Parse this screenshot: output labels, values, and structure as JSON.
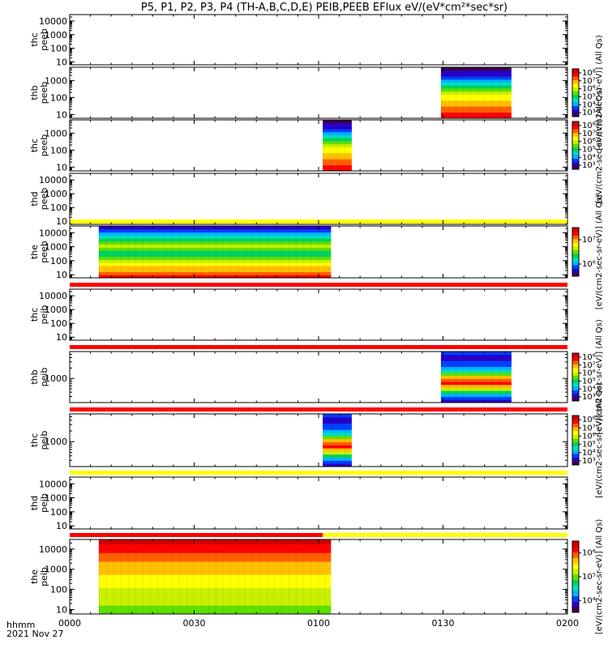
{
  "figure": {
    "title": "P5, P1, P2, P3, P4 (TH-A,B,C,D,E) PEIB,PEEB EFlux eV/(eV*cm²*sec*sr)",
    "time_label": "hhmm",
    "date_label": "2021 Nov 27"
  },
  "colors": {
    "flag_yellow": "#ffff00",
    "flag_red": "#ff0000",
    "colormap": [
      "#3c0050",
      "#2800c8",
      "#0040ff",
      "#00b4ff",
      "#00e0c0",
      "#00d060",
      "#60e000",
      "#c8f000",
      "#ffff00",
      "#ffc000",
      "#ff6000",
      "#ff0000",
      "#d00000"
    ]
  },
  "chart_data": {
    "type": "heatmap",
    "x_axis": {
      "range_hhmm": [
        "0000",
        "0200"
      ],
      "range_minutes": [
        0,
        120
      ],
      "ticks": [
        {
          "label": "0000",
          "minute": 0
        },
        {
          "label": "0030",
          "minute": 30
        },
        {
          "label": "0100",
          "minute": 60
        },
        {
          "label": "0130",
          "minute": 90
        },
        {
          "label": "0200",
          "minute": 120
        }
      ]
    },
    "panels": [
      {
        "id": "thc-peeb",
        "label": [
          "thc",
          "peeb"
        ],
        "ylog": true,
        "ytick_labels": [
          "10",
          "100",
          "1000",
          "10000"
        ],
        "ytick_values": [
          10,
          100,
          1000,
          10000
        ],
        "ylim": [
          6,
          30000
        ],
        "colorbar": false,
        "flag": null,
        "blocks": []
      },
      {
        "id": "thb-peeb",
        "label": [
          "thb",
          "peeb"
        ],
        "ylog": true,
        "ytick_labels": [
          "10",
          "100",
          "1000"
        ],
        "ytick_values": [
          10,
          100,
          1000
        ],
        "ylim": [
          6,
          6000
        ],
        "colorbar": true,
        "colorbar_ticks": [
          "10³",
          "10⁴",
          "10⁵",
          "10⁶",
          "10⁷",
          "10⁸"
        ],
        "colorbar_label": "[eV/(cm2-sec-sr-eV)] (All Qs)",
        "flag": null,
        "blocks": [
          {
            "t0": 89.5,
            "t1": 106.5,
            "profile": [
              11,
              11,
              10,
              10,
              9,
              9,
              8,
              8,
              7,
              6,
              5,
              4,
              3,
              2,
              1,
              1,
              0
            ]
          }
        ]
      },
      {
        "id": "thc-peeb2",
        "label": [
          "thc",
          "peeb"
        ],
        "ylog": true,
        "ytick_labels": [
          "10",
          "100",
          "1000"
        ],
        "ytick_values": [
          10,
          100,
          1000
        ],
        "ylim": [
          6,
          6000
        ],
        "colorbar": true,
        "colorbar_ticks": [
          "10³",
          "10⁴",
          "10⁵",
          "10⁶",
          "10⁷",
          "10⁸"
        ],
        "colorbar_label": "[eV/(cm2-sec-sr-eV)] (All Qs)",
        "flag": null,
        "blocks": [
          {
            "t0": 61,
            "t1": 68,
            "profile": [
              11,
              11,
              10,
              10,
              9,
              9,
              8,
              8,
              7,
              6,
              5,
              4,
              3,
              2,
              1,
              1,
              0
            ]
          }
        ]
      },
      {
        "id": "thd-peeb",
        "label": [
          "thd",
          "peeb"
        ],
        "ylog": true,
        "ytick_labels": [
          "10",
          "100",
          "1000",
          "10000"
        ],
        "ytick_values": [
          10,
          100,
          1000,
          10000
        ],
        "ylim": [
          6,
          30000
        ],
        "colorbar": false,
        "flag": null,
        "blocks": []
      },
      {
        "id": "the-peeb",
        "label": [
          "the",
          "peeb"
        ],
        "ylog": true,
        "ytick_labels": [
          "10",
          "100",
          "1000",
          "10000"
        ],
        "ytick_values": [
          10,
          100,
          1000,
          10000
        ],
        "ylim": [
          6,
          30000
        ],
        "colorbar": true,
        "colorbar_ticks": [
          "10⁶",
          "10⁷"
        ],
        "colorbar_label": "[eV/(cm2-sec-sr-eV)] (All Qs)",
        "flag": "yellow",
        "blocks": [
          {
            "t0": 7,
            "t1": 63,
            "profile": [
              11,
              10,
              9,
              9,
              8,
              7,
              6,
              5,
              5,
              6,
              7,
              6,
              5,
              4,
              3,
              2,
              1
            ]
          }
        ]
      },
      {
        "id": "thc-peib",
        "label": [
          "thc",
          "peib"
        ],
        "ylog": true,
        "ytick_labels": [
          "10",
          "100",
          "1000",
          "10000"
        ],
        "ytick_values": [
          10,
          100,
          1000,
          10000
        ],
        "ylim": [
          6,
          30000
        ],
        "colorbar": false,
        "flag": "red",
        "blocks": []
      },
      {
        "id": "thb-peib",
        "label": [
          "thb",
          "peib"
        ],
        "ylog": true,
        "ytick_labels": [
          "1000"
        ],
        "ytick_values": [
          1000
        ],
        "ylim": [
          200,
          6000
        ],
        "colorbar": true,
        "colorbar_ticks": [
          "10³",
          "10⁴",
          "10⁵",
          "10⁶",
          "10⁷",
          "10⁸"
        ],
        "colorbar_label": "[eV/(cm2-sec-sr-eV)] (All Qs)",
        "flag": "red",
        "blocks": [
          {
            "t0": 89.5,
            "t1": 106.5,
            "profile": [
              1,
              2,
              3,
              5,
              7,
              9,
              11,
              10,
              9,
              6,
              4,
              3,
              2,
              2,
              1,
              1,
              2
            ]
          }
        ]
      },
      {
        "id": "thc-peib2",
        "label": [
          "thc",
          "peib"
        ],
        "ylog": true,
        "ytick_labels": [
          "1000"
        ],
        "ytick_values": [
          1000
        ],
        "ylim": [
          200,
          6000
        ],
        "colorbar": true,
        "colorbar_ticks": [
          "10³",
          "10⁴",
          "10⁵",
          "10⁶",
          "10⁷",
          "10⁸"
        ],
        "colorbar_label": "[eV/(cm2-sec-sr-eV)] (All Qs)",
        "flag": "red",
        "blocks": [
          {
            "t0": 61,
            "t1": 68,
            "profile": [
              1,
              2,
              3,
              5,
              7,
              9,
              11,
              10,
              9,
              6,
              4,
              3,
              2,
              2,
              1,
              1,
              2
            ]
          }
        ]
      },
      {
        "id": "thd-peib",
        "label": [
          "thd",
          "peib"
        ],
        "ylog": true,
        "ytick_labels": [
          "10",
          "100",
          "1000",
          "10000"
        ],
        "ytick_values": [
          10,
          100,
          1000,
          10000
        ],
        "ylim": [
          6,
          30000
        ],
        "colorbar": false,
        "flag": "yellow",
        "blocks": []
      },
      {
        "id": "the-peib",
        "label": [
          "the",
          "peib"
        ],
        "ylog": true,
        "ytick_labels": [
          "10",
          "100",
          "1000",
          "10000"
        ],
        "ytick_values": [
          10,
          100,
          1000,
          10000
        ],
        "ylim": [
          6,
          30000
        ],
        "colorbar": true,
        "colorbar_ticks": [
          "10⁴",
          "10⁵",
          "10⁶"
        ],
        "colorbar_label": "[eV/(cm2-sec-sr-eV)] (All Qs)",
        "flag": "red-yellow",
        "blocks": [
          {
            "t0": 7,
            "t1": 63,
            "profile": [
              6,
              6,
              7,
              7,
              7,
              7,
              8,
              8,
              8,
              9,
              9,
              9,
              10,
              10,
              11,
              11,
              12
            ]
          }
        ]
      }
    ]
  }
}
